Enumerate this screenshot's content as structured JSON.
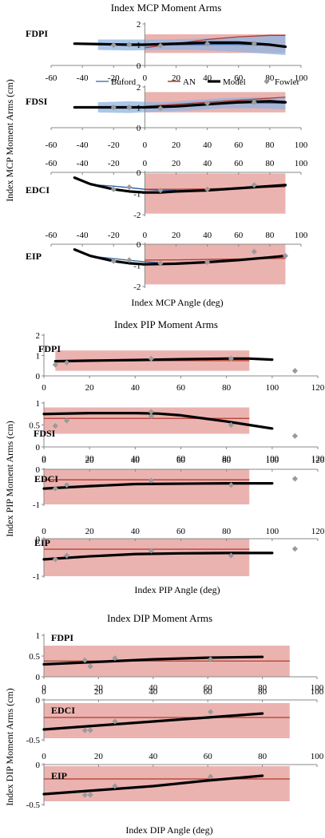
{
  "figure": {
    "mcp_title": "Index MCP Moment Arms",
    "mcp_ylabel": "Index MCP Moment Arms (cm)",
    "mcp_xlabel": "Index MCP Angle (deg)",
    "pip_title": "Index PIP Moment Arms",
    "pip_ylabel": "Index PIP Moment Arms (cm)",
    "pip_xlabel": "Index PIP Angle (deg)",
    "dip_title": "Index DIP Moment Arms",
    "dip_ylabel": "Index DIP Moment Arms (cm)",
    "dip_xlabel": "Index DIP Angle (deg)"
  },
  "legend": [
    {
      "label": "Buford",
      "color": "#4a7ebb",
      "style": "line"
    },
    {
      "label": "AN",
      "color": "#b03a2e",
      "style": "line"
    },
    {
      "label": "Model",
      "color": "#000000",
      "style": "thick-line"
    },
    {
      "label": "Fowler",
      "color": "#9a9a9a",
      "style": "diamond"
    }
  ],
  "colors": {
    "model": "#000000",
    "an_line": "#b03a2e",
    "an_band": "#e8a6a2",
    "buford_line": "#2f5f9e",
    "buford_band": "#8fb4e3",
    "fowler": "#9a9a9a",
    "axis": "#888888"
  },
  "chart_data": [
    {
      "type": "line",
      "group": "MCP",
      "label": "FDPI",
      "xlim": [
        -60,
        100
      ],
      "ylim": [
        0,
        2
      ],
      "xticks": [
        -60,
        -40,
        -20,
        0,
        20,
        40,
        60,
        80,
        100
      ],
      "yticks": [
        0,
        1,
        2
      ],
      "model": {
        "x": [
          -45,
          -30,
          -10,
          0,
          20,
          40,
          60,
          80,
          90
        ],
        "y": [
          1.05,
          1.03,
          1.0,
          1.0,
          1.05,
          1.1,
          1.1,
          1.0,
          0.9
        ]
      },
      "an": {
        "x": [
          0,
          20,
          40,
          60,
          80,
          90
        ],
        "y": [
          0.85,
          1.05,
          1.25,
          1.38,
          1.45,
          1.45
        ],
        "band": [
          0.6,
          1.5
        ]
      },
      "buford": {
        "x": [
          -30,
          -10,
          10,
          30,
          50,
          70,
          90
        ],
        "y": [
          1.0,
          0.98,
          0.98,
          1.0,
          1.02,
          1.0,
          0.95
        ],
        "band_lower": [
          0.75,
          0.72,
          0.75,
          0.75,
          0.7,
          0.6,
          0.5
        ],
        "band_upper": [
          1.25,
          1.25,
          1.25,
          1.28,
          1.35,
          1.4,
          1.45
        ]
      },
      "fowler": {
        "x": [
          -20,
          -10,
          10,
          40,
          70
        ],
        "y": [
          0.98,
          1.0,
          0.95,
          1.05,
          1.05
        ]
      }
    },
    {
      "type": "line",
      "group": "MCP",
      "label": "FDSI",
      "xlim": [
        -60,
        100
      ],
      "ylim": [
        0,
        2
      ],
      "xticks": [
        -60,
        -40,
        -20,
        0,
        20,
        40,
        60,
        80,
        100
      ],
      "yticks": [
        0,
        1,
        2
      ],
      "model": {
        "x": [
          -45,
          -30,
          -10,
          0,
          20,
          40,
          60,
          80,
          90
        ],
        "y": [
          1.0,
          1.0,
          1.0,
          1.0,
          1.05,
          1.15,
          1.25,
          1.3,
          1.25
        ]
      },
      "an": {
        "x": [
          0,
          20,
          40,
          60,
          80,
          90
        ],
        "y": [
          1.05,
          1.15,
          1.25,
          1.35,
          1.45,
          1.5
        ],
        "band": [
          0.75,
          1.75
        ]
      },
      "buford": {
        "x": [
          -30,
          -10,
          10,
          30,
          50,
          70,
          90
        ],
        "y": [
          1.0,
          1.0,
          1.02,
          1.08,
          1.18,
          1.22,
          1.2
        ],
        "band_lower": [
          0.75,
          0.72,
          0.8,
          0.85,
          0.95,
          0.95,
          0.9
        ],
        "band_upper": [
          1.25,
          1.3,
          1.25,
          1.35,
          1.45,
          1.5,
          1.48
        ]
      },
      "fowler": {
        "x": [
          -20,
          -10,
          10,
          40,
          70
        ],
        "y": [
          1.0,
          1.0,
          0.95,
          1.2,
          1.25
        ]
      }
    },
    {
      "type": "line",
      "group": "MCP",
      "label": "EDCI",
      "xlim": [
        -60,
        100
      ],
      "ylim": [
        -2,
        0
      ],
      "xticks": [
        -60,
        -40,
        -20,
        0,
        20,
        40,
        60,
        80,
        100
      ],
      "yticks": [
        -2,
        -1,
        0
      ],
      "model": {
        "x": [
          -45,
          -35,
          -20,
          -10,
          0,
          10,
          20,
          40,
          60,
          80,
          90
        ],
        "y": [
          -0.25,
          -0.55,
          -0.8,
          -0.9,
          -0.95,
          -0.95,
          -0.9,
          -0.85,
          -0.75,
          -0.65,
          -0.6
        ]
      },
      "an": {
        "x": [
          0,
          20,
          40,
          60,
          80,
          90
        ],
        "y": [
          -0.8,
          -0.8,
          -0.78,
          -0.74,
          -0.7,
          -0.68
        ],
        "band": [
          -1.95,
          -0.05
        ]
      },
      "buford": {
        "x": [
          -30,
          -20,
          -10,
          0,
          10,
          20
        ],
        "y": [
          -0.6,
          -0.65,
          -0.72,
          -0.8,
          -0.85,
          -0.85
        ],
        "band_lower": [
          -0.62,
          -0.67,
          -0.74,
          -0.82,
          -0.87,
          -0.87
        ],
        "band_upper": [
          -0.58,
          -0.63,
          -0.7,
          -0.78,
          -0.83,
          -0.83
        ]
      },
      "fowler": {
        "x": [
          -20,
          -10,
          10,
          40,
          70
        ],
        "y": [
          -0.8,
          -0.7,
          -0.85,
          -0.8,
          -0.6
        ]
      }
    },
    {
      "type": "line",
      "group": "MCP",
      "label": "EIP",
      "xlim": [
        -60,
        100
      ],
      "ylim": [
        -2,
        0
      ],
      "xticks": [
        -60,
        -40,
        -20,
        0,
        20,
        40,
        60,
        80,
        100
      ],
      "yticks": [
        -2,
        -1,
        0
      ],
      "model": {
        "x": [
          -45,
          -35,
          -20,
          -10,
          0,
          20,
          40,
          60,
          80,
          90
        ],
        "y": [
          -0.25,
          -0.55,
          -0.8,
          -0.9,
          -0.95,
          -0.92,
          -0.85,
          -0.75,
          -0.62,
          -0.55
        ]
      },
      "an": {
        "x": [
          0,
          20,
          40,
          60,
          80,
          90
        ],
        "y": [
          -0.75,
          -0.74,
          -0.72,
          -0.7,
          -0.68,
          -0.67
        ],
        "band": [
          -1.9,
          0
        ]
      },
      "buford": {
        "x": [
          -30,
          -20,
          -10,
          0,
          10
        ],
        "y": [
          -0.6,
          -0.68,
          -0.76,
          -0.83,
          -0.88
        ],
        "band_lower": [
          -0.62,
          -0.7,
          -0.78,
          -0.85,
          -0.9
        ],
        "band_upper": [
          -0.58,
          -0.66,
          -0.74,
          -0.81,
          -0.86
        ]
      },
      "fowler": {
        "x": [
          -20,
          -10,
          10,
          40,
          70,
          90
        ],
        "y": [
          -0.8,
          -0.75,
          -0.9,
          -0.85,
          -0.35,
          -0.55
        ]
      }
    },
    {
      "type": "line",
      "group": "PIP",
      "label": "FDPI",
      "xlim": [
        0,
        120
      ],
      "ylim": [
        0,
        2
      ],
      "xticks": [
        0,
        20,
        40,
        60,
        80,
        100,
        120
      ],
      "yticks": [
        0,
        1,
        2
      ],
      "model": {
        "x": [
          5,
          20,
          40,
          60,
          80,
          90,
          100
        ],
        "y": [
          0.72,
          0.75,
          0.78,
          0.82,
          0.85,
          0.85,
          0.8
        ]
      },
      "an": {
        "x": [
          5,
          90
        ],
        "y": [
          0.75,
          0.75
        ],
        "band": [
          0.25,
          1.25
        ]
      },
      "fowler": {
        "x": [
          5,
          10,
          47,
          82,
          110
        ],
        "y": [
          0.55,
          0.65,
          0.85,
          0.85,
          0.25
        ]
      }
    },
    {
      "type": "line",
      "group": "PIP",
      "label": "FDSI",
      "xlim": [
        0,
        120
      ],
      "ylim": [
        0,
        1
      ],
      "xticks": [
        0,
        20,
        40,
        60,
        80,
        100,
        120
      ],
      "yticks": [
        0,
        0.5,
        1
      ],
      "model": {
        "x": [
          0,
          20,
          40,
          50,
          60,
          70,
          80,
          90,
          100
        ],
        "y": [
          0.75,
          0.77,
          0.77,
          0.76,
          0.72,
          0.65,
          0.58,
          0.5,
          0.42
        ]
      },
      "an": {
        "x": [
          0,
          90
        ],
        "y": [
          0.65,
          0.65
        ],
        "band": [
          0.3,
          0.9
        ]
      },
      "fowler": {
        "x": [
          5,
          10,
          47,
          47,
          82,
          110
        ],
        "y": [
          0.48,
          0.6,
          0.7,
          0.8,
          0.5,
          0.25
        ]
      }
    },
    {
      "type": "line",
      "group": "PIP",
      "label": "EDCI",
      "xlim": [
        0,
        120
      ],
      "ylim": [
        -1,
        0
      ],
      "xticks": [
        0,
        20,
        40,
        60,
        80,
        100,
        120
      ],
      "yticks": [
        -1,
        0
      ],
      "model": {
        "x": [
          0,
          20,
          40,
          60,
          80,
          100
        ],
        "y": [
          -0.55,
          -0.48,
          -0.42,
          -0.41,
          -0.4,
          -0.4
        ]
      },
      "an": {
        "x": [
          0,
          90
        ],
        "y": [
          -0.3,
          -0.3
        ],
        "band": [
          -1,
          0
        ]
      },
      "fowler": {
        "x": [
          5,
          10,
          47,
          82,
          110
        ],
        "y": [
          -0.55,
          -0.45,
          -0.32,
          -0.45,
          -0.27
        ]
      }
    },
    {
      "type": "line",
      "group": "PIP",
      "label": "EIP",
      "xlim": [
        0,
        120
      ],
      "ylim": [
        -1,
        0
      ],
      "xticks": [
        0,
        20,
        40,
        60,
        80,
        100,
        120
      ],
      "yticks": [
        -1,
        0
      ],
      "model": {
        "x": [
          0,
          20,
          40,
          60,
          80,
          100
        ],
        "y": [
          -0.55,
          -0.47,
          -0.41,
          -0.39,
          -0.38,
          -0.38
        ]
      },
      "an": {
        "x": [
          0,
          90
        ],
        "y": [
          -0.28,
          -0.28
        ],
        "band": [
          -1,
          0
        ]
      },
      "fowler": {
        "x": [
          5,
          10,
          47,
          82,
          110
        ],
        "y": [
          -0.55,
          -0.45,
          -0.32,
          -0.45,
          -0.27
        ]
      }
    },
    {
      "type": "line",
      "group": "DIP",
      "label": "FDPI",
      "xlim": [
        0,
        100
      ],
      "ylim": [
        0,
        1
      ],
      "xticks": [
        0,
        20,
        40,
        60,
        80,
        100
      ],
      "yticks": [
        0,
        0.5,
        1
      ],
      "model": {
        "x": [
          0,
          20,
          40,
          60,
          80
        ],
        "y": [
          0.3,
          0.36,
          0.42,
          0.46,
          0.48
        ]
      },
      "an": {
        "x": [
          0,
          90
        ],
        "y": [
          0.38,
          0.38
        ],
        "band": [
          0,
          0.75
        ]
      },
      "fowler": {
        "x": [
          15,
          17,
          26,
          61
        ],
        "y": [
          0.4,
          0.25,
          0.45,
          0.42
        ]
      }
    },
    {
      "type": "line",
      "group": "DIP",
      "label": "EDCI",
      "xlim": [
        0,
        100
      ],
      "ylim": [
        -0.5,
        0
      ],
      "xticks": [
        0,
        20,
        40,
        60,
        80,
        100
      ],
      "yticks": [
        -0.5,
        0
      ],
      "model": {
        "x": [
          0,
          20,
          40,
          60,
          80
        ],
        "y": [
          -0.37,
          -0.32,
          -0.27,
          -0.22,
          -0.17
        ]
      },
      "an": {
        "x": [
          0,
          90
        ],
        "y": [
          -0.22,
          -0.22
        ],
        "band": [
          -0.48,
          -0.04
        ]
      },
      "fowler": {
        "x": [
          15,
          17,
          26,
          61
        ],
        "y": [
          -0.38,
          -0.38,
          -0.27,
          -0.15
        ]
      }
    },
    {
      "type": "line",
      "group": "DIP",
      "label": "EIP",
      "xlim": [
        0,
        100
      ],
      "ylim": [
        -0.5,
        0
      ],
      "xticks": [
        0,
        20,
        40,
        60,
        80,
        100
      ],
      "yticks": [
        -0.5,
        0
      ],
      "model": {
        "x": [
          0,
          20,
          40,
          60,
          80
        ],
        "y": [
          -0.37,
          -0.32,
          -0.27,
          -0.2,
          -0.14
        ]
      },
      "an": {
        "x": [
          0,
          90
        ],
        "y": [
          -0.18,
          -0.18
        ],
        "band": [
          -0.46,
          -0.02
        ]
      },
      "fowler": {
        "x": [
          15,
          17,
          26,
          61
        ],
        "y": [
          -0.38,
          -0.38,
          -0.27,
          -0.15
        ]
      }
    }
  ]
}
